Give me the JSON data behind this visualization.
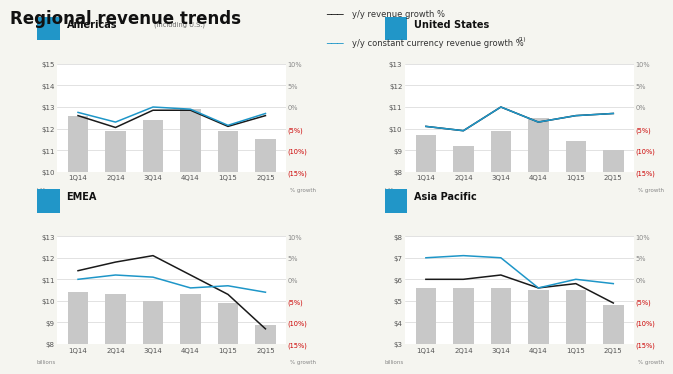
{
  "title": "Regional revenue trends",
  "legend": {
    "line1": "y/y revenue growth %",
    "line2": "y/y constant currency revenue growth %",
    "superscript": "(1)"
  },
  "quarters": [
    "1Q14",
    "2Q14",
    "3Q14",
    "4Q14",
    "1Q15",
    "2Q15"
  ],
  "subplots": [
    {
      "title": "Americas",
      "title_suffix": "(including U.S.)",
      "bar_values": [
        12.6,
        11.9,
        12.4,
        12.9,
        11.9,
        11.5
      ],
      "line_black": [
        12.6,
        12.05,
        12.85,
        12.85,
        12.1,
        12.6
      ],
      "line_blue": [
        12.75,
        12.3,
        13.0,
        12.9,
        12.15,
        12.7
      ],
      "ylim": [
        10,
        15
      ],
      "yticks": [
        10,
        11,
        12,
        13,
        14,
        15
      ],
      "ytick_labels": [
        "$10",
        "$11",
        "$12",
        "$13",
        "$14",
        "$15"
      ],
      "pct_at_ticks": [
        "(15%)",
        "(10%)",
        "(5%)",
        "0%",
        "5%",
        "10%"
      ]
    },
    {
      "title": "United States",
      "title_suffix": "",
      "bar_values": [
        9.7,
        9.2,
        9.9,
        10.5,
        9.4,
        9.0
      ],
      "line_black": [
        10.1,
        9.9,
        11.0,
        10.3,
        10.6,
        10.7
      ],
      "line_blue": [
        10.1,
        9.9,
        11.0,
        10.3,
        10.6,
        10.7
      ],
      "ylim": [
        8,
        13
      ],
      "yticks": [
        8,
        9,
        10,
        11,
        12,
        13
      ],
      "ytick_labels": [
        "$8",
        "$9",
        "$10",
        "$11",
        "$12",
        "$13"
      ],
      "pct_at_ticks": [
        "(15%)",
        "(10%)",
        "(5%)",
        "0%",
        "5%",
        "10%"
      ]
    },
    {
      "title": "EMEA",
      "title_suffix": "",
      "bar_values": [
        10.4,
        10.3,
        10.0,
        10.3,
        9.9,
        8.9
      ],
      "line_black": [
        11.4,
        11.8,
        12.1,
        11.2,
        10.3,
        8.7
      ],
      "line_blue": [
        11.0,
        11.2,
        11.1,
        10.6,
        10.7,
        10.4
      ],
      "ylim": [
        8,
        13
      ],
      "yticks": [
        8,
        9,
        10,
        11,
        12,
        13
      ],
      "ytick_labels": [
        "$8",
        "$9",
        "$10",
        "$11",
        "$12",
        "$13"
      ],
      "pct_at_ticks": [
        "(15%)",
        "(10%)",
        "(5%)",
        "0%",
        "5%",
        "10%"
      ]
    },
    {
      "title": "Asia Pacific",
      "title_suffix": "",
      "bar_values": [
        5.6,
        5.6,
        5.6,
        5.5,
        5.5,
        4.8
      ],
      "line_black": [
        6.0,
        6.0,
        6.2,
        5.6,
        5.8,
        4.9
      ],
      "line_blue": [
        7.0,
        7.1,
        7.0,
        5.6,
        6.0,
        5.8
      ],
      "ylim": [
        3,
        8
      ],
      "yticks": [
        3,
        4,
        5,
        6,
        7,
        8
      ],
      "ytick_labels": [
        "$3",
        "$4",
        "$5",
        "$6",
        "$7",
        "$8"
      ],
      "pct_at_ticks": [
        "(15%)",
        "(10%)",
        "(5%)",
        "0%",
        "5%",
        "10%"
      ]
    }
  ],
  "bar_color": "#c8c8c8",
  "line_black_color": "#1a1a1a",
  "line_blue_color": "#1e96c8",
  "background_color": "#f5f5f0",
  "title_color": "#111111",
  "right_label_color_red": "#cc0000",
  "right_label_color_grey": "#888888",
  "icon_color": "#2196c8"
}
